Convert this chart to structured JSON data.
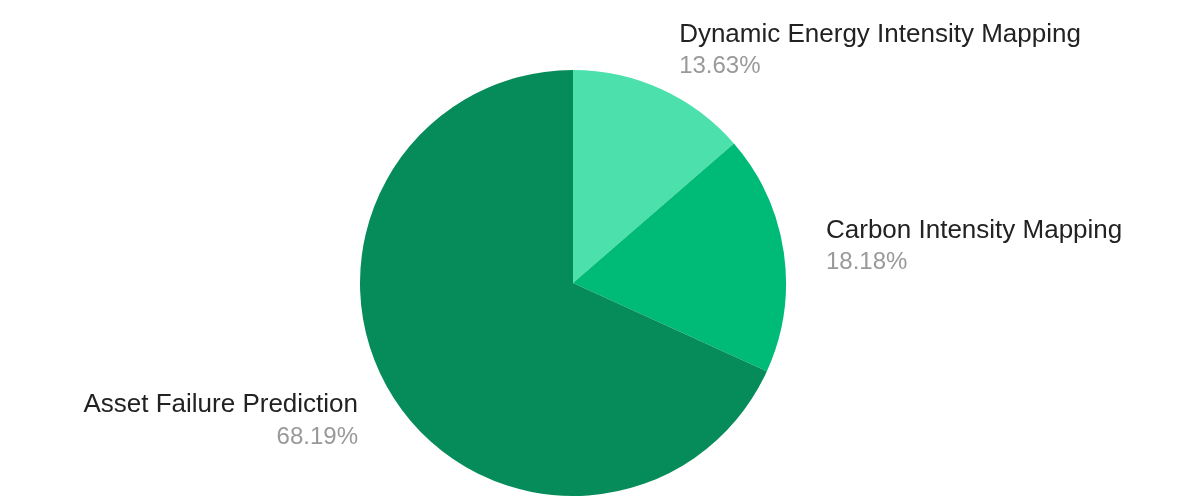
{
  "chart_data": {
    "type": "pie",
    "categories": [
      "Dynamic Energy Intensity Mapping",
      "Carbon Intensity Mapping",
      "Asset Failure Prediction"
    ],
    "values": [
      13.63,
      18.18,
      68.19
    ],
    "colors": [
      "#4ce0ac",
      "#00bb77",
      "#058c5a"
    ],
    "value_labels": [
      "13.63%",
      "18.18%",
      "68.19%"
    ],
    "legend": false
  }
}
